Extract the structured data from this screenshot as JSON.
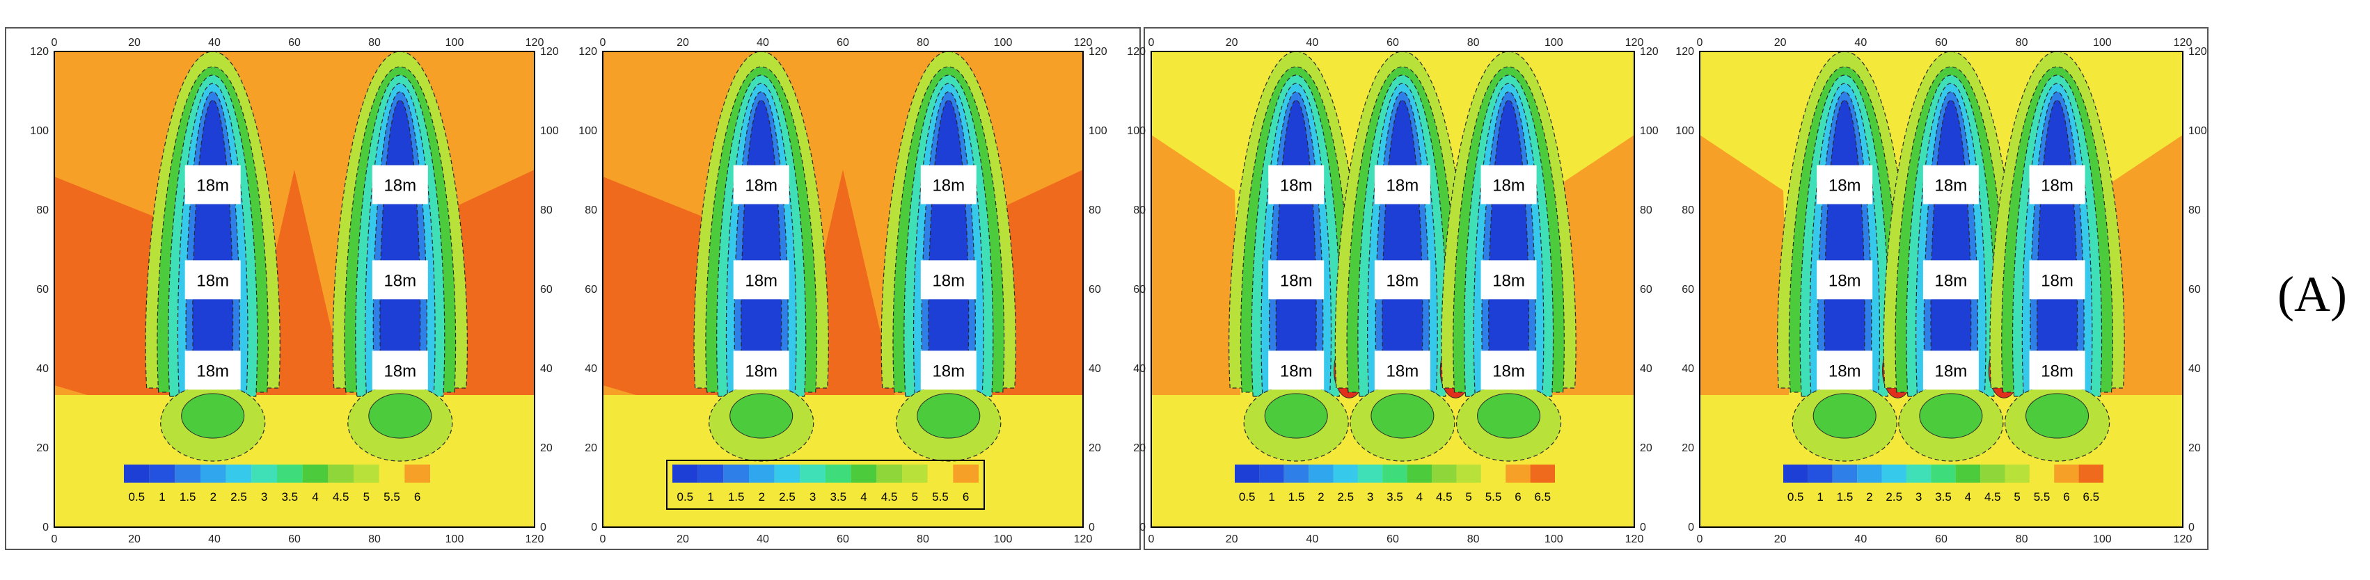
{
  "figure": {
    "panel_label": "(A)",
    "tick_values": [
      "0",
      "20",
      "40",
      "60",
      "80",
      "100",
      "120"
    ],
    "building_label": "18m",
    "colors": {
      "low": "#1d3fd6",
      "mid_blue": "#2f7fe8",
      "cyan": "#36c9ec",
      "teal": "#3fe0b8",
      "green": "#4ccc3c",
      "yellow_green": "#b8e13a",
      "yellow": "#f4e83a",
      "orange": "#f6a028",
      "dark_orange": "#ef6a1c",
      "red": "#e0301c"
    },
    "panels": [
      {
        "name": "panel-1",
        "scale_labels": [
          "0.5",
          "1",
          "1.5",
          "2",
          "2.5",
          "3",
          "3.5",
          "4",
          "4.5",
          "5",
          "5.5",
          "6"
        ],
        "columns": 2,
        "rows": 3
      },
      {
        "name": "panel-2",
        "scale_labels": [
          "0.5",
          "1",
          "1.5",
          "2",
          "2.5",
          "3",
          "3.5",
          "4",
          "4.5",
          "5",
          "5.5",
          "6"
        ],
        "columns": 2,
        "rows": 3
      },
      {
        "name": "panel-3",
        "scale_labels": [
          "0.5",
          "1",
          "1.5",
          "2",
          "2.5",
          "3",
          "3.5",
          "4",
          "4.5",
          "5",
          "5.5",
          "6",
          "6.5"
        ],
        "columns": 3,
        "rows": 3
      },
      {
        "name": "panel-4",
        "scale_labels": [
          "0.5",
          "1",
          "1.5",
          "2",
          "2.5",
          "3",
          "3.5",
          "4",
          "4.5",
          "5",
          "5.5",
          "6",
          "6.5"
        ],
        "columns": 3,
        "rows": 3
      }
    ]
  }
}
